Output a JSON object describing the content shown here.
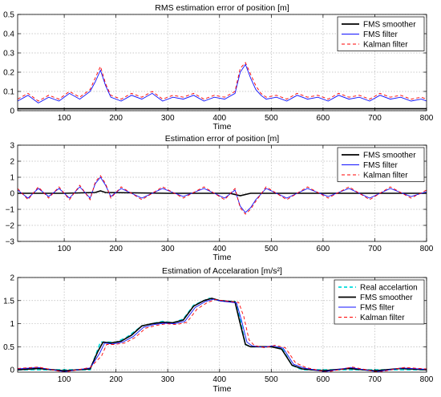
{
  "colors": {
    "smoother": "#000000",
    "fms_filter": "#1010ff",
    "kalman": "#ff0000",
    "real": "#00dddd",
    "grid": "#b8b8b8"
  },
  "chart_data": [
    {
      "type": "line",
      "title": "RMS estimation error of position [m]",
      "xlabel": "Time",
      "ylabel": "",
      "xlim": [
        10,
        800
      ],
      "ylim": [
        0,
        0.5
      ],
      "xticks": [
        100,
        200,
        300,
        400,
        500,
        600,
        700,
        800
      ],
      "yticks": [
        0,
        0.1,
        0.2,
        0.3,
        0.4,
        0.5
      ],
      "xtick_labels": [
        "100",
        "200",
        "300",
        "400",
        "500",
        "600",
        "700",
        "800"
      ],
      "ytick_labels": [
        "0",
        "0.1",
        "0.2",
        "0.3",
        "0.4",
        "0.5"
      ],
      "grid": true,
      "legend_position": "top-right",
      "series": [
        {
          "name": "FMS smoother",
          "color": "#000000",
          "style": "solid",
          "x": [
            10,
            100,
            200,
            300,
            400,
            500,
            600,
            700,
            800
          ],
          "y": [
            0.01,
            0.01,
            0.01,
            0.01,
            0.01,
            0.01,
            0.01,
            0.01,
            0.01
          ]
        },
        {
          "name": "FMS filter",
          "color": "#1010ff",
          "style": "solid",
          "x": [
            10,
            30,
            50,
            70,
            90,
            110,
            130,
            150,
            160,
            170,
            180,
            190,
            210,
            230,
            250,
            270,
            290,
            310,
            330,
            350,
            370,
            390,
            410,
            430,
            440,
            450,
            460,
            470,
            480,
            490,
            510,
            530,
            550,
            570,
            590,
            610,
            630,
            650,
            670,
            690,
            710,
            730,
            750,
            770,
            790,
            800
          ],
          "y": [
            0.05,
            0.08,
            0.04,
            0.07,
            0.05,
            0.09,
            0.06,
            0.1,
            0.15,
            0.21,
            0.13,
            0.07,
            0.05,
            0.08,
            0.06,
            0.09,
            0.05,
            0.07,
            0.06,
            0.08,
            0.05,
            0.07,
            0.06,
            0.09,
            0.2,
            0.24,
            0.17,
            0.11,
            0.08,
            0.06,
            0.07,
            0.05,
            0.08,
            0.06,
            0.07,
            0.05,
            0.08,
            0.06,
            0.07,
            0.05,
            0.08,
            0.06,
            0.07,
            0.05,
            0.06,
            0.05
          ]
        },
        {
          "name": "Kalman filter",
          "color": "#ff0000",
          "style": "dashed",
          "x": [
            10,
            30,
            50,
            70,
            90,
            110,
            130,
            150,
            160,
            170,
            180,
            190,
            210,
            230,
            250,
            270,
            290,
            310,
            330,
            350,
            370,
            390,
            410,
            430,
            440,
            450,
            460,
            470,
            480,
            490,
            510,
            530,
            550,
            570,
            590,
            610,
            630,
            650,
            670,
            690,
            710,
            730,
            750,
            770,
            790,
            800
          ],
          "y": [
            0.06,
            0.09,
            0.05,
            0.08,
            0.06,
            0.1,
            0.07,
            0.11,
            0.17,
            0.23,
            0.14,
            0.08,
            0.06,
            0.09,
            0.07,
            0.1,
            0.06,
            0.08,
            0.07,
            0.09,
            0.06,
            0.08,
            0.07,
            0.1,
            0.22,
            0.25,
            0.19,
            0.13,
            0.09,
            0.07,
            0.08,
            0.06,
            0.09,
            0.07,
            0.08,
            0.06,
            0.09,
            0.07,
            0.08,
            0.06,
            0.09,
            0.07,
            0.08,
            0.06,
            0.07,
            0.06
          ]
        }
      ]
    },
    {
      "type": "line",
      "title": "Estimation error of position [m]",
      "xlabel": "Time",
      "ylabel": "",
      "xlim": [
        10,
        800
      ],
      "ylim": [
        -3,
        3
      ],
      "xticks": [
        100,
        200,
        300,
        400,
        500,
        600,
        700,
        800
      ],
      "yticks": [
        -3,
        -2,
        -1,
        0,
        1,
        2,
        3
      ],
      "xtick_labels": [
        "100",
        "200",
        "300",
        "400",
        "500",
        "600",
        "700",
        "800"
      ],
      "ytick_labels": [
        "−3",
        "−2",
        "−1",
        "0",
        "1",
        "2",
        "3"
      ],
      "grid": true,
      "legend_position": "top-right",
      "series": [
        {
          "name": "FMS smoother",
          "color": "#000000",
          "style": "solid",
          "x": [
            10,
            100,
            160,
            170,
            180,
            300,
            420,
            440,
            460,
            600,
            800
          ],
          "y": [
            0,
            0,
            0.05,
            0.15,
            0.05,
            0,
            0,
            -0.15,
            0,
            0,
            0
          ]
        },
        {
          "name": "FMS filter",
          "color": "#1010ff",
          "style": "solid",
          "x": [
            10,
            30,
            50,
            70,
            90,
            110,
            130,
            150,
            160,
            170,
            180,
            190,
            210,
            250,
            290,
            330,
            370,
            410,
            430,
            440,
            450,
            460,
            470,
            490,
            530,
            570,
            610,
            650,
            690,
            730,
            770,
            800
          ],
          "y": [
            0.2,
            -0.3,
            0.3,
            -0.2,
            0.3,
            -0.3,
            0.4,
            -0.3,
            0.6,
            1.0,
            0.5,
            -0.2,
            0.3,
            -0.3,
            0.3,
            -0.2,
            0.3,
            -0.3,
            0.2,
            -0.8,
            -1.2,
            -0.9,
            -0.4,
            0.3,
            -0.3,
            0.3,
            -0.2,
            0.3,
            -0.3,
            0.3,
            -0.2,
            0.1
          ]
        },
        {
          "name": "Kalman filter",
          "color": "#ff0000",
          "style": "dashed",
          "x": [
            10,
            30,
            50,
            70,
            90,
            110,
            130,
            150,
            160,
            170,
            180,
            190,
            210,
            250,
            290,
            330,
            370,
            410,
            430,
            440,
            450,
            460,
            470,
            490,
            530,
            570,
            610,
            650,
            690,
            730,
            770,
            800
          ],
          "y": [
            0.3,
            -0.4,
            0.4,
            -0.3,
            0.4,
            -0.4,
            0.5,
            -0.4,
            0.7,
            1.1,
            0.6,
            -0.3,
            0.4,
            -0.4,
            0.4,
            -0.3,
            0.4,
            -0.4,
            0.3,
            -0.9,
            -1.3,
            -1.0,
            -0.5,
            0.4,
            -0.4,
            0.4,
            -0.3,
            0.4,
            -0.4,
            0.4,
            -0.3,
            0.2
          ]
        }
      ]
    },
    {
      "type": "line",
      "title": "Estimation of Accelaration [m/s²]",
      "xlabel": "Time",
      "ylabel": "",
      "xlim": [
        10,
        800
      ],
      "ylim": [
        -0.05,
        2
      ],
      "xticks": [
        100,
        200,
        300,
        400,
        500,
        600,
        700,
        800
      ],
      "yticks": [
        0,
        0.5,
        1,
        1.5,
        2
      ],
      "xtick_labels": [
        "100",
        "200",
        "300",
        "400",
        "500",
        "600",
        "700",
        "800"
      ],
      "ytick_labels": [
        "0",
        "0.5",
        "1",
        "1.5",
        "2"
      ],
      "grid": true,
      "legend_position": "top-right",
      "series": [
        {
          "name": "Real accelartion",
          "color": "#00dddd",
          "style": "dashed",
          "x": [
            10,
            150,
            170,
            180,
            200,
            220,
            250,
            270,
            290,
            310,
            330,
            350,
            370,
            380,
            400,
            430,
            440,
            450,
            460,
            500,
            520,
            540,
            560,
            800
          ],
          "y": [
            0,
            0,
            0.6,
            0.6,
            0.6,
            0.7,
            0.95,
            1.0,
            1.05,
            1.02,
            1.1,
            1.4,
            1.5,
            1.55,
            1.5,
            1.48,
            1.1,
            0.55,
            0.5,
            0.5,
            0.48,
            0.1,
            0,
            0
          ]
        },
        {
          "name": "FMS smoother",
          "color": "#000000",
          "style": "solid",
          "x": [
            10,
            50,
            100,
            150,
            165,
            175,
            190,
            210,
            230,
            250,
            270,
            290,
            310,
            330,
            350,
            370,
            385,
            400,
            430,
            440,
            450,
            460,
            480,
            500,
            520,
            540,
            560,
            600,
            650,
            700,
            750,
            800
          ],
          "y": [
            0,
            0.03,
            -0.02,
            0.02,
            0.4,
            0.6,
            0.58,
            0.62,
            0.75,
            0.95,
            1.0,
            1.03,
            1.02,
            1.08,
            1.38,
            1.5,
            1.55,
            1.5,
            1.47,
            1.0,
            0.55,
            0.5,
            0.5,
            0.5,
            0.45,
            0.1,
            0.02,
            -0.02,
            0.03,
            -0.02,
            0.03,
            0
          ]
        },
        {
          "name": "FMS filter",
          "color": "#1010ff",
          "style": "solid",
          "x": [
            10,
            50,
            100,
            150,
            168,
            178,
            193,
            213,
            233,
            253,
            273,
            293,
            313,
            333,
            353,
            373,
            388,
            403,
            433,
            443,
            453,
            463,
            483,
            503,
            523,
            543,
            563,
            603,
            653,
            703,
            753,
            800
          ],
          "y": [
            0.02,
            0.05,
            -0.04,
            0.04,
            0.35,
            0.58,
            0.56,
            0.6,
            0.72,
            0.92,
            0.98,
            1.01,
            1.0,
            1.05,
            1.35,
            1.48,
            1.53,
            1.49,
            1.45,
            1.05,
            0.6,
            0.52,
            0.49,
            0.52,
            0.47,
            0.12,
            0.04,
            -0.04,
            0.05,
            -0.04,
            0.04,
            0.01
          ]
        },
        {
          "name": "Kalman filter",
          "color": "#ff0000",
          "style": "dashed",
          "x": [
            10,
            50,
            100,
            150,
            172,
            182,
            197,
            217,
            237,
            257,
            277,
            297,
            317,
            337,
            357,
            377,
            392,
            407,
            437,
            447,
            457,
            467,
            487,
            507,
            527,
            547,
            567,
            607,
            657,
            707,
            757,
            800
          ],
          "y": [
            0.03,
            0.06,
            -0.05,
            0.05,
            0.3,
            0.55,
            0.55,
            0.58,
            0.7,
            0.9,
            0.96,
            1.0,
            0.98,
            1.03,
            1.32,
            1.46,
            1.52,
            1.5,
            1.46,
            1.15,
            0.65,
            0.53,
            0.48,
            0.53,
            0.48,
            0.15,
            0.05,
            -0.05,
            0.06,
            -0.05,
            0.05,
            0.02
          ]
        }
      ]
    }
  ]
}
